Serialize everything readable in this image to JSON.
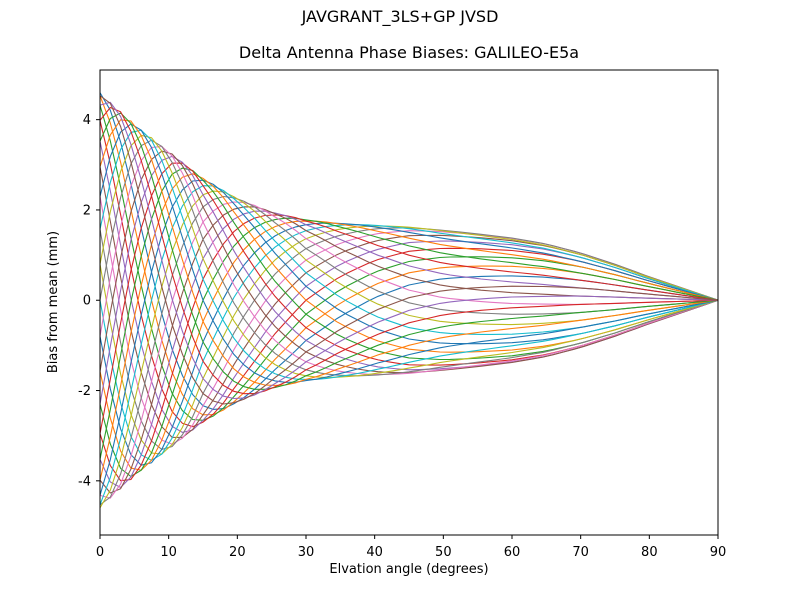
{
  "chart_data": {
    "type": "line",
    "title": "JAVGRANT_3LS+GP JVSD",
    "subtitle": "Delta Antenna Phase Biases: GALILEO-E5a",
    "xlabel": "Elvation angle (degrees)",
    "ylabel": "Bias from mean (mm)",
    "xlim": [
      0,
      90
    ],
    "ylim": [
      -5.2,
      5.1
    ],
    "x_ticks": [
      0,
      10,
      20,
      30,
      40,
      50,
      60,
      70,
      80,
      90
    ],
    "y_ticks": [
      -4,
      -2,
      0,
      2,
      4
    ],
    "grid": false,
    "legend": "none",
    "n_series": 36,
    "azimuth_step_deg": 10,
    "series_note": "36 overlapping azimuth-dependent phase-bias curves; each curve follows value(e) = envelope_mm(e) * cos(azimuth_deg + phase_deg(e)); all curves converge to 0 mm at 90 deg elevation; spread at 0 deg elevation is roughly -4.2 to +5.0 mm; mid-elevation envelope is about +/-1.7 mm near 40 deg tapering to 0 at 90 deg",
    "x_samples": [
      0,
      5,
      10,
      15,
      20,
      25,
      30,
      35,
      40,
      45,
      50,
      55,
      60,
      65,
      70,
      75,
      80,
      85,
      90
    ],
    "envelope_mm": [
      4.6,
      3.9,
      3.3,
      2.7,
      2.25,
      1.95,
      1.78,
      1.7,
      1.66,
      1.62,
      1.55,
      1.47,
      1.38,
      1.25,
      1.05,
      0.8,
      0.52,
      0.26,
      0
    ],
    "phase_deg": [
      0,
      55,
      105,
      150,
      185,
      215,
      240,
      258,
      272,
      282,
      288,
      291,
      293,
      294,
      295,
      295,
      295,
      295,
      295
    ],
    "colors": [
      "#1f77b4",
      "#ff7f0e",
      "#2ca02c",
      "#d62728",
      "#9467bd",
      "#8c564b",
      "#e377c2",
      "#7f7f7f",
      "#bcbd22",
      "#17becf"
    ],
    "line_width": 1.1,
    "axes_color": "#000000",
    "background_color": "#ffffff"
  }
}
